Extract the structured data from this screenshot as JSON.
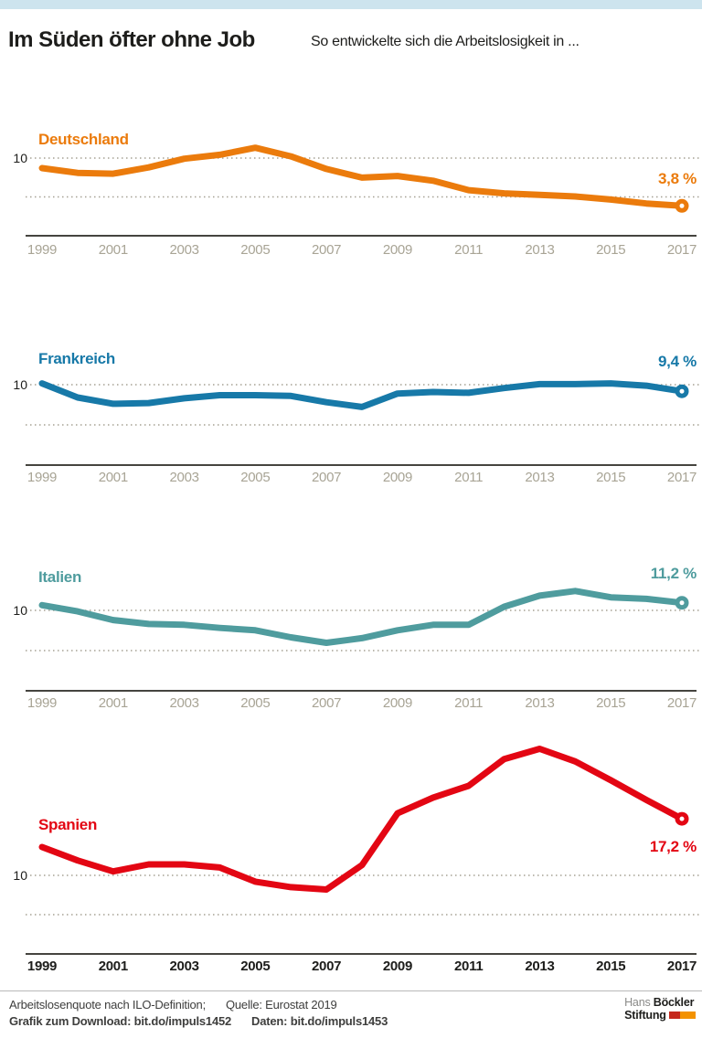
{
  "header": {
    "title": "Im Süden öfter ohne Job",
    "subtitle": "So entwickelte sich die Arbeitslosigkeit in ..."
  },
  "colors": {
    "topbar": "#cde4ee",
    "deutschland": "#eb7b0c",
    "frankreich": "#1779a8",
    "italien": "#4f9c9e",
    "spanien": "#e30613",
    "grid": "#a5a193",
    "axis": "#45443f",
    "year_gray": "#a8a495",
    "logo_red": "#c5281c",
    "logo_orange": "#f39200"
  },
  "chart_data": {
    "type": "line",
    "x": [
      1999,
      2000,
      2001,
      2002,
      2003,
      2004,
      2005,
      2006,
      2007,
      2008,
      2009,
      2010,
      2011,
      2012,
      2013,
      2014,
      2015,
      2016,
      2017
    ],
    "x_tick_labels": [
      "1999",
      "2001",
      "2003",
      "2005",
      "2007",
      "2009",
      "2011",
      "2013",
      "2015",
      "2017"
    ],
    "y_axis_tick_label": "10",
    "y_gridlines": [
      5,
      10
    ],
    "ylim_start": 0,
    "grid": "dotted horizontal lines at 5 and 10",
    "legend_position": "panel titles top-left, value labels at line end",
    "series": [
      {
        "name": "Deutschland",
        "color": "#eb7b0c",
        "end_label": "3,8 %",
        "values": [
          8.6,
          8.0,
          7.9,
          8.7,
          9.8,
          10.3,
          11.2,
          10.1,
          8.5,
          7.4,
          7.6,
          7.0,
          5.8,
          5.4,
          5.2,
          5.0,
          4.6,
          4.1,
          3.8
        ]
      },
      {
        "name": "Frankreich",
        "color": "#1779a8",
        "end_label": "9,4 %",
        "values": [
          10.4,
          8.6,
          7.8,
          7.9,
          8.5,
          8.9,
          8.9,
          8.8,
          8.0,
          7.4,
          9.1,
          9.3,
          9.2,
          9.8,
          10.3,
          10.3,
          10.4,
          10.1,
          9.4
        ]
      },
      {
        "name": "Italien",
        "color": "#4f9c9e",
        "end_label": "11,2 %",
        "values": [
          10.9,
          10.1,
          9.0,
          8.5,
          8.4,
          8.0,
          7.7,
          6.8,
          6.1,
          6.7,
          7.7,
          8.4,
          8.4,
          10.7,
          12.1,
          12.7,
          11.9,
          11.7,
          11.2
        ]
      },
      {
        "name": "Spanien",
        "color": "#e30613",
        "end_label": "17,2 %",
        "values": [
          13.6,
          11.9,
          10.5,
          11.4,
          11.4,
          11.0,
          9.2,
          8.5,
          8.2,
          11.3,
          17.9,
          19.9,
          21.4,
          24.8,
          26.1,
          24.5,
          22.1,
          19.6,
          17.2
        ]
      }
    ]
  },
  "footer": {
    "note": "Arbeitslosenquote nach ILO-Definition;",
    "source": "Quelle: Eurostat 2019",
    "download": "Grafik zum Download: bit.do/impuls1452",
    "data_link": "Daten: bit.do/impuls1453"
  },
  "logo": {
    "name_regular": "Hans",
    "name_bold": "Böckler",
    "line2": "Stiftung"
  }
}
